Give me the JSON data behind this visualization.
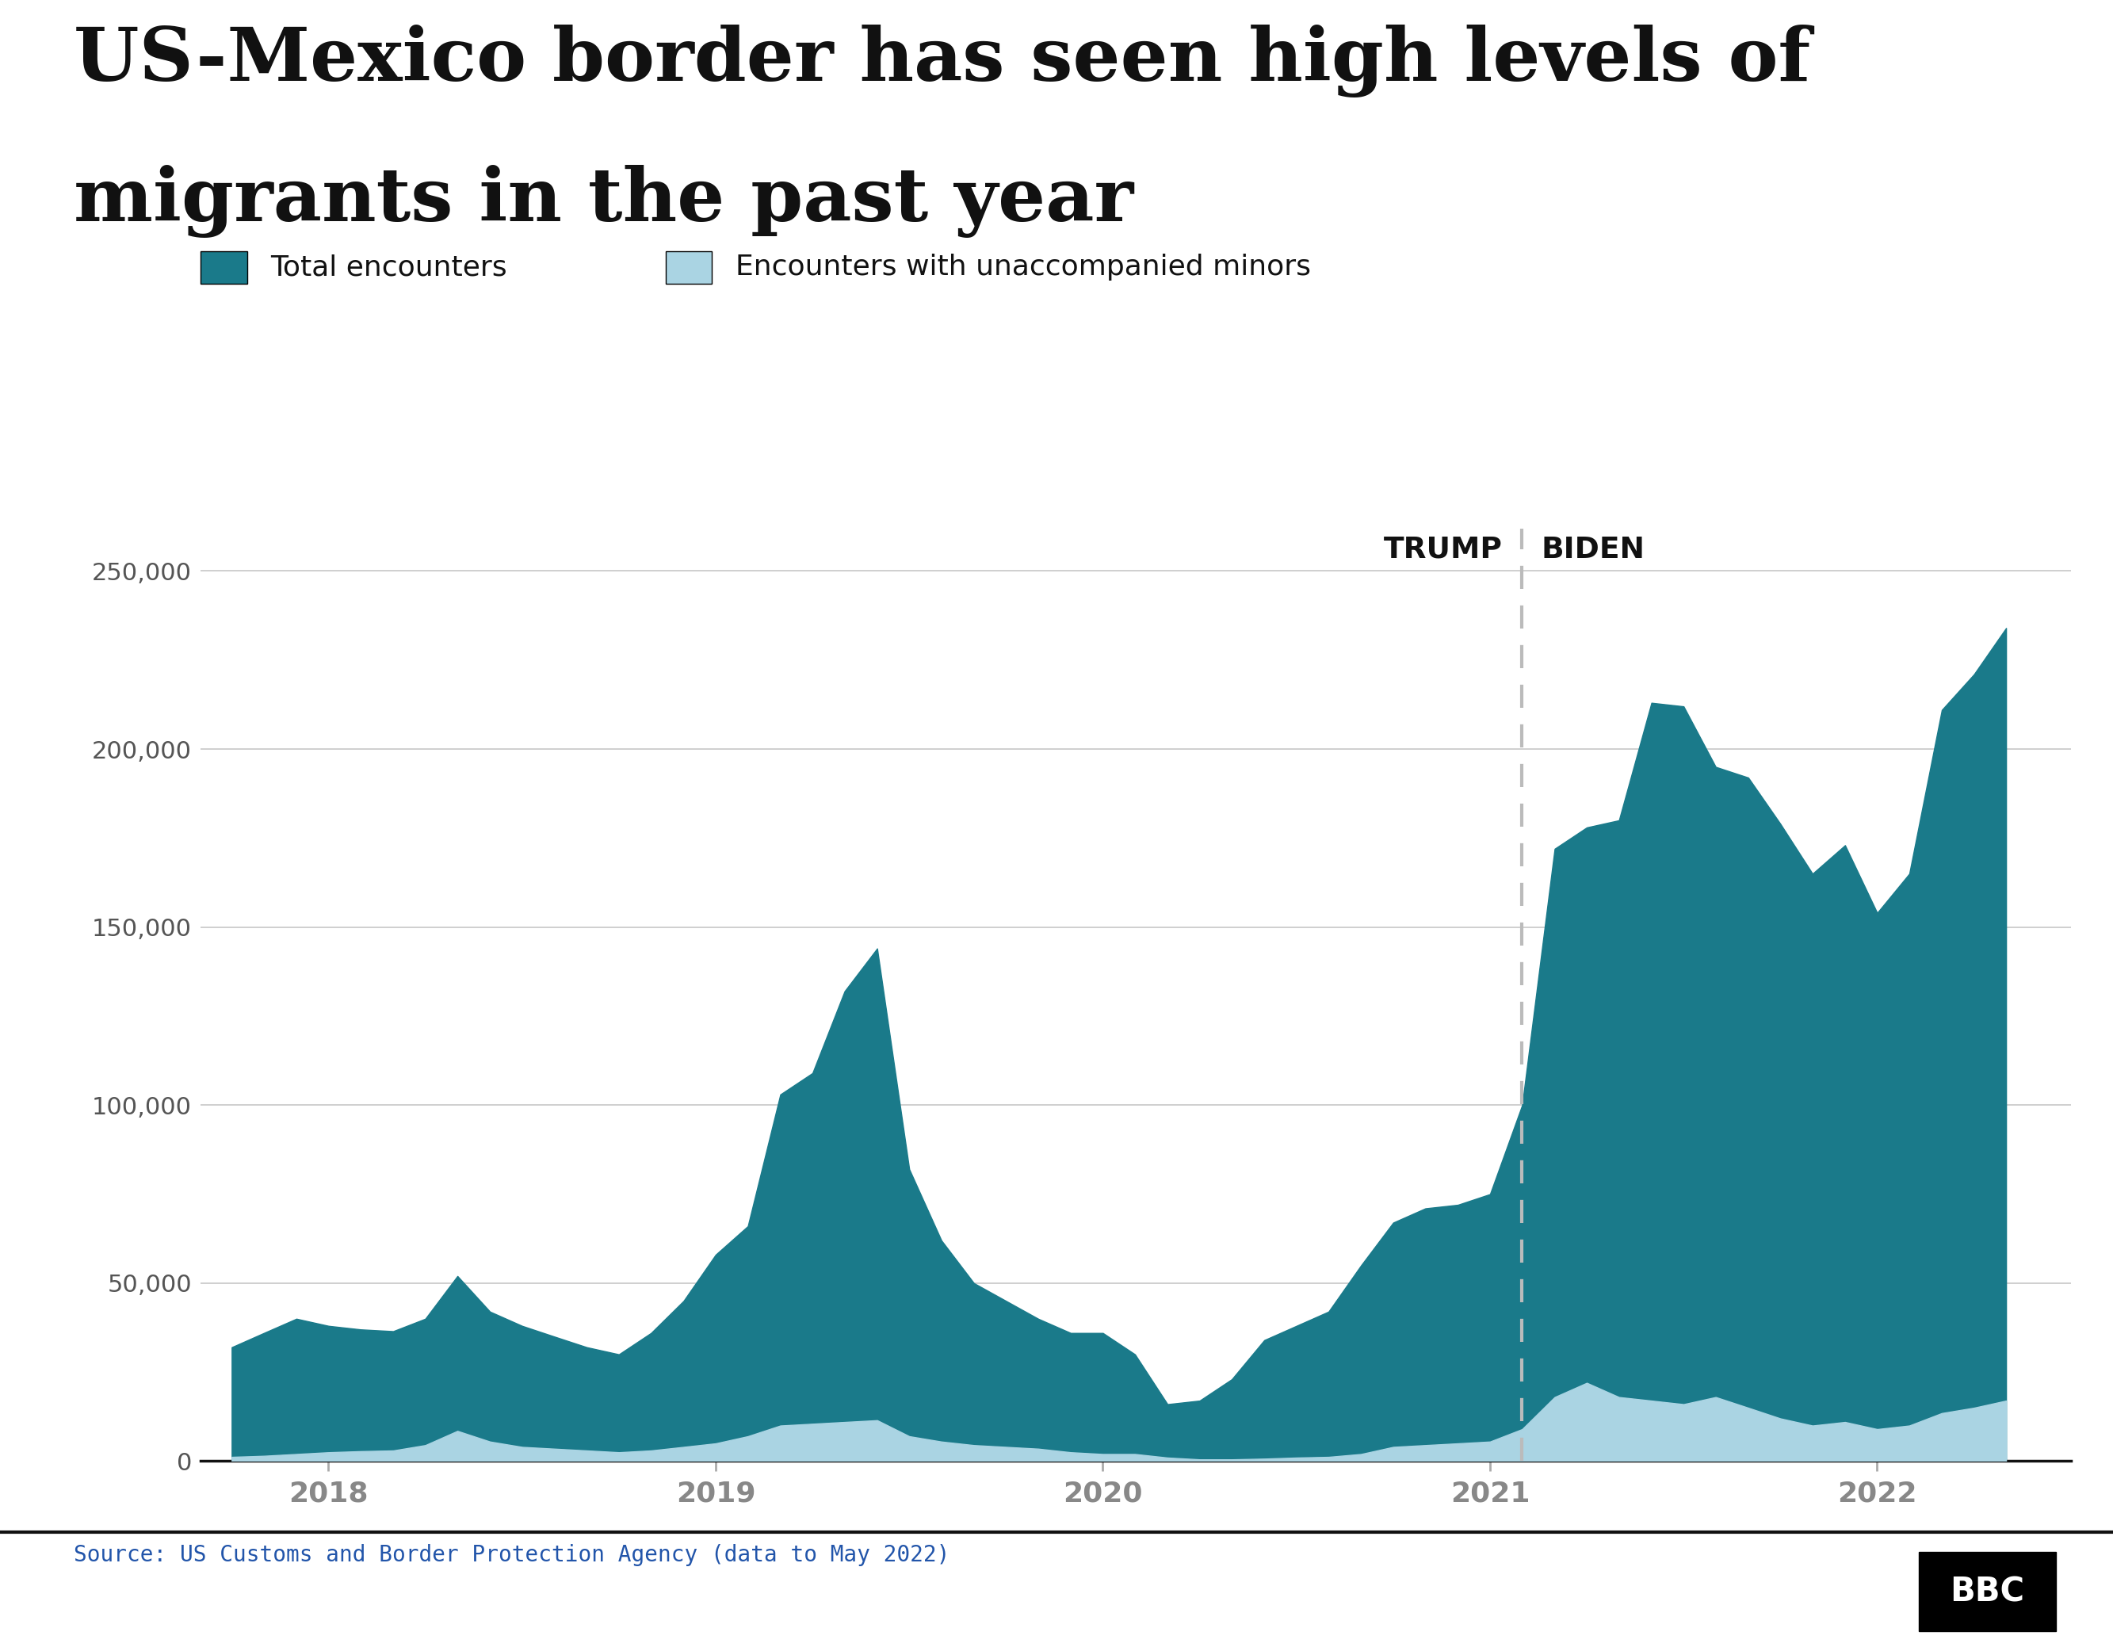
{
  "title_line1": "US-Mexico border has seen high levels of",
  "title_line2": "migrants in the past year",
  "legend_total": "Total encounters",
  "legend_minor": "Encounters with unaccompanied minors",
  "source": "Source: US Customs and Border Protection Agency (data to May 2022)",
  "color_total": "#1a7a8a",
  "color_minor": "#aad4e3",
  "ylim": [
    0,
    262000
  ],
  "yticks": [
    0,
    50000,
    100000,
    150000,
    200000,
    250000
  ],
  "trump_biden_x": 2021.083,
  "months": [
    2017.75,
    2017.833,
    2017.917,
    2018.0,
    2018.083,
    2018.167,
    2018.25,
    2018.333,
    2018.417,
    2018.5,
    2018.583,
    2018.667,
    2018.75,
    2018.833,
    2018.917,
    2019.0,
    2019.083,
    2019.167,
    2019.25,
    2019.333,
    2019.417,
    2019.5,
    2019.583,
    2019.667,
    2019.75,
    2019.833,
    2019.917,
    2020.0,
    2020.083,
    2020.167,
    2020.25,
    2020.333,
    2020.417,
    2020.5,
    2020.583,
    2020.667,
    2020.75,
    2020.833,
    2020.917,
    2021.0,
    2021.083,
    2021.167,
    2021.25,
    2021.333,
    2021.417,
    2021.5,
    2021.583,
    2021.667,
    2021.75,
    2021.833,
    2021.917,
    2022.0,
    2022.083,
    2022.167,
    2022.25,
    2022.333
  ],
  "total": [
    32000,
    36000,
    40000,
    38000,
    37000,
    36500,
    40000,
    52000,
    42000,
    38000,
    35000,
    32000,
    30000,
    36000,
    45000,
    58000,
    66000,
    103000,
    109000,
    132000,
    144000,
    82000,
    62000,
    50000,
    45000,
    40000,
    36000,
    36000,
    30000,
    16000,
    17000,
    23000,
    34000,
    38000,
    42000,
    55000,
    67000,
    71000,
    72000,
    75000,
    100000,
    172000,
    178000,
    180000,
    213000,
    212000,
    195000,
    192000,
    179000,
    165000,
    173000,
    154000,
    165000,
    211000,
    221000,
    234000
  ],
  "minor": [
    1200,
    1500,
    2000,
    2500,
    2800,
    3000,
    4500,
    8500,
    5500,
    4000,
    3500,
    3000,
    2500,
    3000,
    4000,
    5000,
    7000,
    10000,
    10500,
    11000,
    11500,
    7000,
    5500,
    4500,
    4000,
    3500,
    2500,
    2000,
    2000,
    1000,
    500,
    500,
    700,
    1000,
    1200,
    2000,
    4000,
    4500,
    5000,
    5500,
    9000,
    18000,
    22000,
    18000,
    17000,
    16000,
    18000,
    15000,
    12000,
    10000,
    11000,
    9000,
    10000,
    13500,
    15000,
    17000
  ],
  "xlim_left": 2017.67,
  "xlim_right": 2022.5,
  "xtick_positions": [
    2018.0,
    2019.0,
    2020.0,
    2021.0,
    2022.0
  ],
  "xtick_labels": [
    "2018",
    "2019",
    "2020",
    "2021",
    "2022"
  ],
  "background_color": "#ffffff",
  "grid_color": "#cccccc"
}
